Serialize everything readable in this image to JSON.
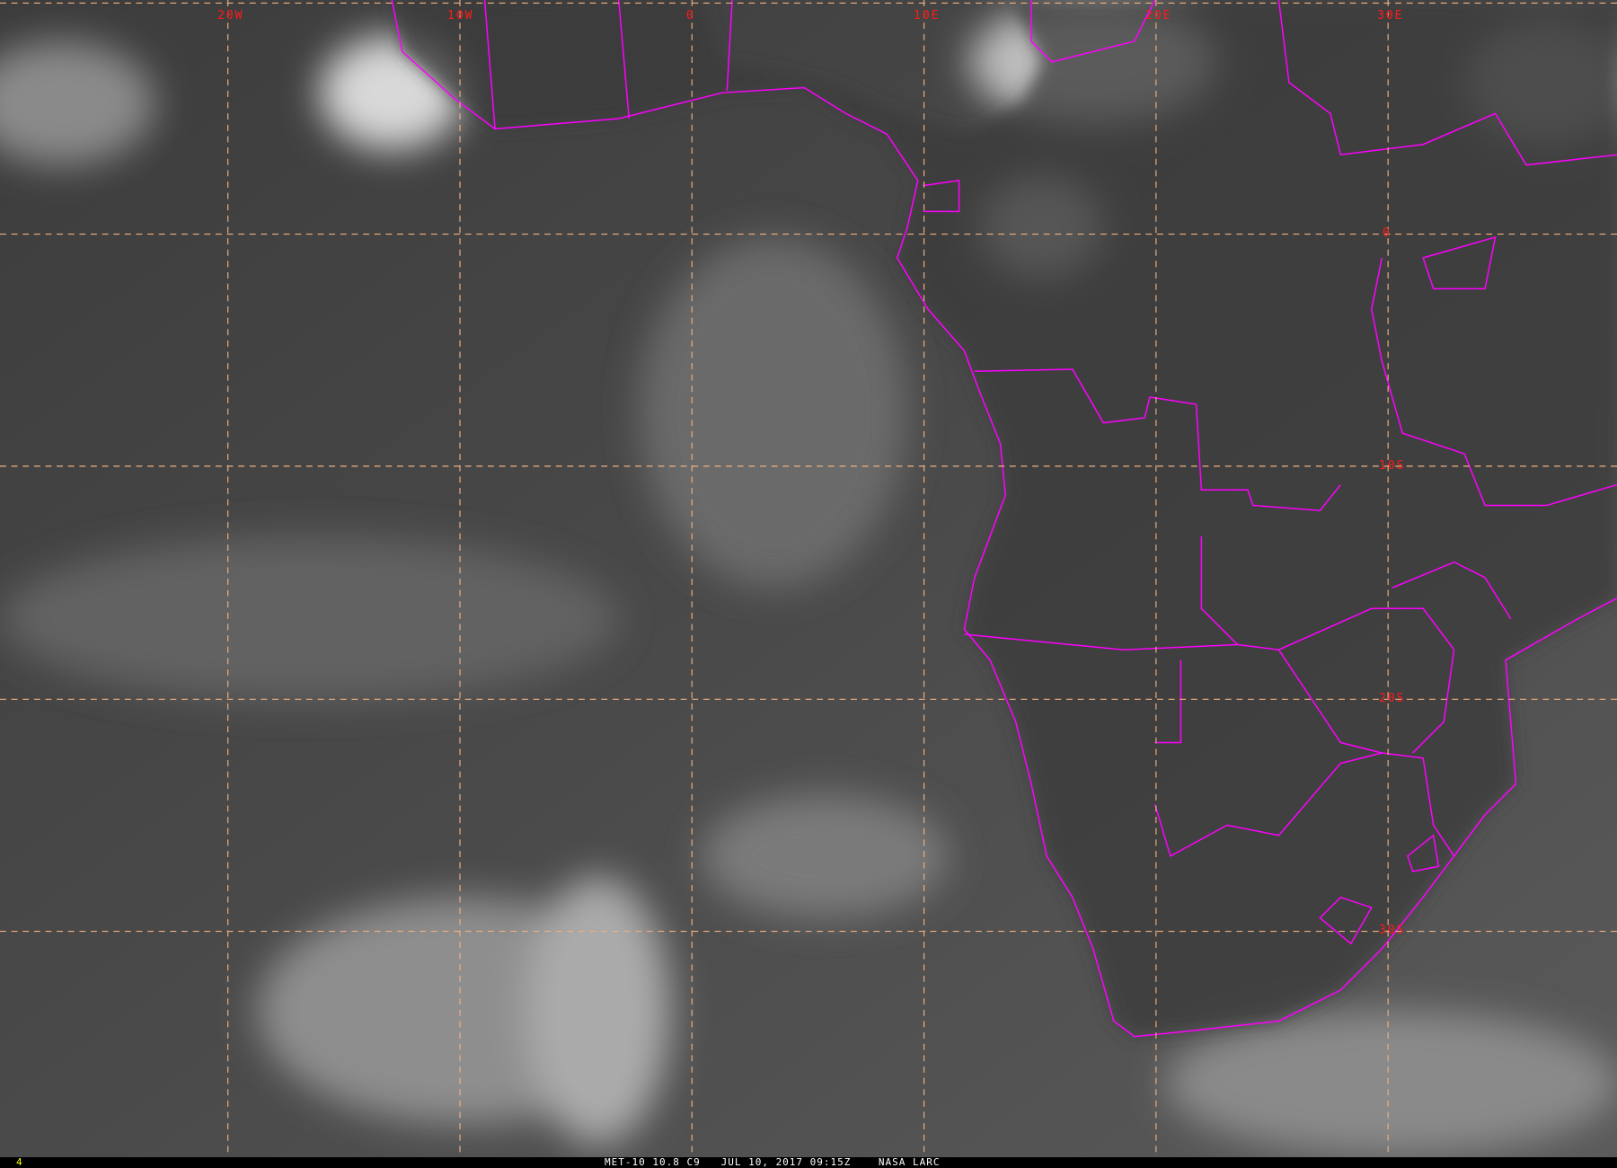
{
  "image": {
    "type": "satellite infrared imagery",
    "colors": {
      "coastline": "#ff00ff",
      "gridline": "#f0b080",
      "grid_label": "#ff1a1a",
      "frame_number": "#ffff00"
    }
  },
  "grid": {
    "longitude_labels": [
      "20W",
      "10W",
      "0",
      "10E",
      "20E",
      "30E"
    ],
    "latitude_labels": [
      "0",
      "10S",
      "20S",
      "30S"
    ]
  },
  "footer": {
    "frame_number": "4",
    "caption": "MET-10 10.8 C9   JUL 10, 2017 09:15Z    NASA LARC"
  }
}
